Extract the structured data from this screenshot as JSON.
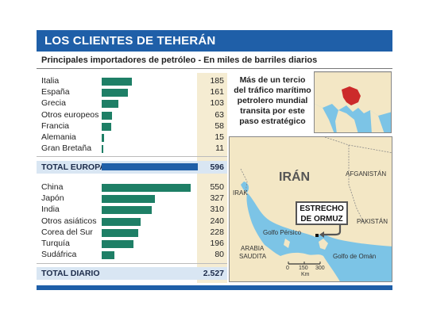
{
  "title": "LOS CLIENTES DE TEHERÁN",
  "subtitle": "Principales importadores de petróleo - En miles de barriles diarios",
  "note": "Más de un tercio del tráfico marítimo petrolero mundial transita por este paso estratégico",
  "chart_data": {
    "type": "bar",
    "orientation": "horizontal",
    "title": "LOS CLIENTES DE TEHERÁN",
    "subtitle": "Principales importadores de petróleo - En miles de barriles diarios",
    "europe": {
      "categories": [
        "Italia",
        "España",
        "Grecia",
        "Otros europeos",
        "Francia",
        "Alemania",
        "Gran Bretaña"
      ],
      "values": [
        185,
        161,
        103,
        63,
        58,
        15,
        11
      ],
      "value_labels": [
        "185",
        "161",
        "103",
        "63",
        "58",
        "15",
        "11"
      ]
    },
    "total_europa": {
      "label": "TOTAL EUROPA",
      "value": 596,
      "value_label": "596"
    },
    "asia": {
      "categories": [
        "China",
        "Japón",
        "India",
        "Otros asiáticos",
        "Corea del Sur",
        "Turquía",
        "Sudáfrica"
      ],
      "values": [
        550,
        327,
        310,
        240,
        228,
        196,
        80
      ],
      "value_labels": [
        "550",
        "327",
        "310",
        "240",
        "228",
        "196",
        "80"
      ]
    },
    "total_diario": {
      "label": "TOTAL DIARIO",
      "value": 2527,
      "value_label": "2.527"
    },
    "xlim": [
      0,
      600
    ]
  },
  "map": {
    "labels": {
      "iran": "IRÁN",
      "afganistan": "AFGANISTÁN",
      "irak": "IRAK",
      "pakistan": "PAKISTÁN",
      "golfo_persico": "Golfo Pérsico",
      "arabia": "ARABIA",
      "saudita": "SAUDITA",
      "golfo_oman": "Golfo de Omán",
      "estrecho_1": "ESTRECHO",
      "estrecho_2": "DE ORMUZ"
    },
    "scale": {
      "ticks": [
        "0",
        "150",
        "300"
      ],
      "unit": "Km"
    },
    "colors": {
      "land": "#f3e7c5",
      "water": "#7cc4e6",
      "iran": "#cc2a2a"
    }
  }
}
